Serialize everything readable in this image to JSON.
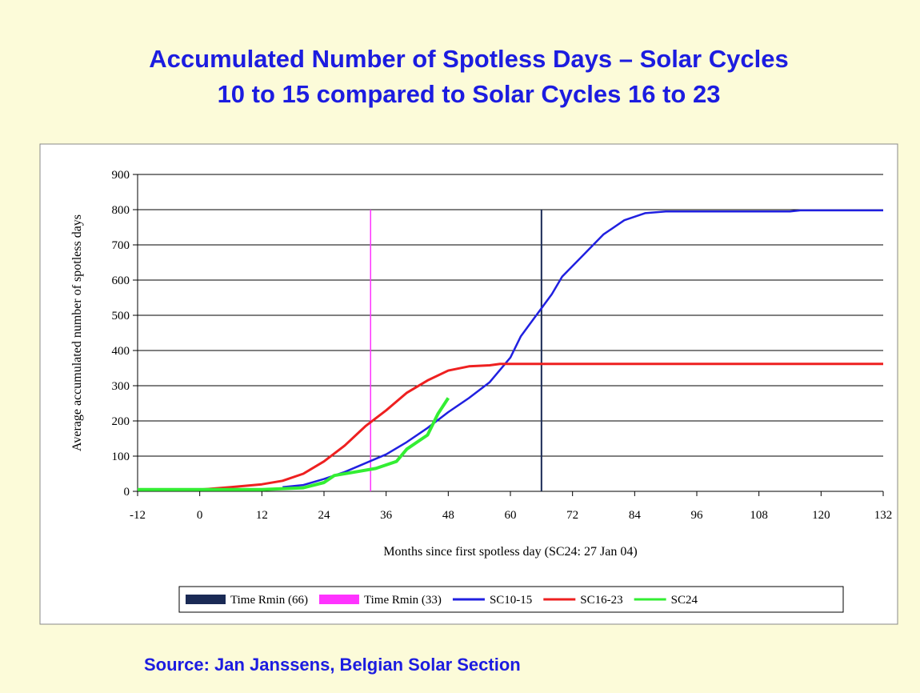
{
  "chart_data": {
    "type": "line",
    "title": [
      "Accumulated Number of Spotless Days – Solar Cycles",
      "10 to 15 compared to Solar Cycles 16 to 23"
    ],
    "x_label": "Months since first spotless day (SC24: 27 Jan 04)",
    "y_label": "Average accumulated number of spotless days",
    "source": "Source: Jan Janssens, Belgian Solar Section",
    "xlim": [
      -12,
      132
    ],
    "xticks": [
      -12,
      0,
      12,
      24,
      36,
      48,
      60,
      72,
      84,
      96,
      108,
      120,
      132
    ],
    "ylim": [
      0,
      900
    ],
    "yticks": [
      0,
      100,
      200,
      300,
      400,
      500,
      600,
      700,
      800,
      900
    ],
    "grid": true,
    "legend": "bottom",
    "series": [
      {
        "name": "Time Rmin (66)",
        "color": "#1a2a55",
        "width": 2,
        "x": [
          66,
          66
        ],
        "values": [
          0,
          800
        ]
      },
      {
        "name": "Time Rmin (33)",
        "color": "#ff33ff",
        "width": 1.5,
        "x": [
          33,
          33
        ],
        "values": [
          0,
          800
        ]
      },
      {
        "name": "SC10-15",
        "color": "#2020e0",
        "width": 2.5,
        "x": [
          16,
          20,
          24,
          28,
          32,
          36,
          40,
          44,
          48,
          52,
          56,
          60,
          62,
          64,
          66,
          68,
          70,
          74,
          78,
          82,
          86,
          90,
          114,
          116,
          132
        ],
        "values": [
          12,
          18,
          35,
          55,
          80,
          105,
          140,
          180,
          225,
          265,
          310,
          380,
          440,
          480,
          520,
          560,
          610,
          670,
          730,
          770,
          790,
          795,
          795,
          798,
          798
        ]
      },
      {
        "name": "SC16-23",
        "color": "#ee2020",
        "width": 3,
        "x": [
          0,
          6,
          12,
          16,
          20,
          24,
          28,
          32,
          36,
          40,
          44,
          48,
          52,
          56,
          58,
          132
        ],
        "values": [
          5,
          12,
          20,
          30,
          50,
          85,
          130,
          185,
          230,
          280,
          315,
          343,
          355,
          358,
          362,
          362
        ]
      },
      {
        "name": "SC24",
        "color": "#33ee33",
        "width": 4,
        "x": [
          -12,
          0,
          12,
          20,
          24,
          26,
          30,
          34,
          38,
          40,
          42,
          44,
          46,
          48
        ],
        "values": [
          5,
          5,
          5,
          10,
          25,
          45,
          55,
          65,
          85,
          120,
          140,
          160,
          220,
          265
        ]
      }
    ]
  }
}
